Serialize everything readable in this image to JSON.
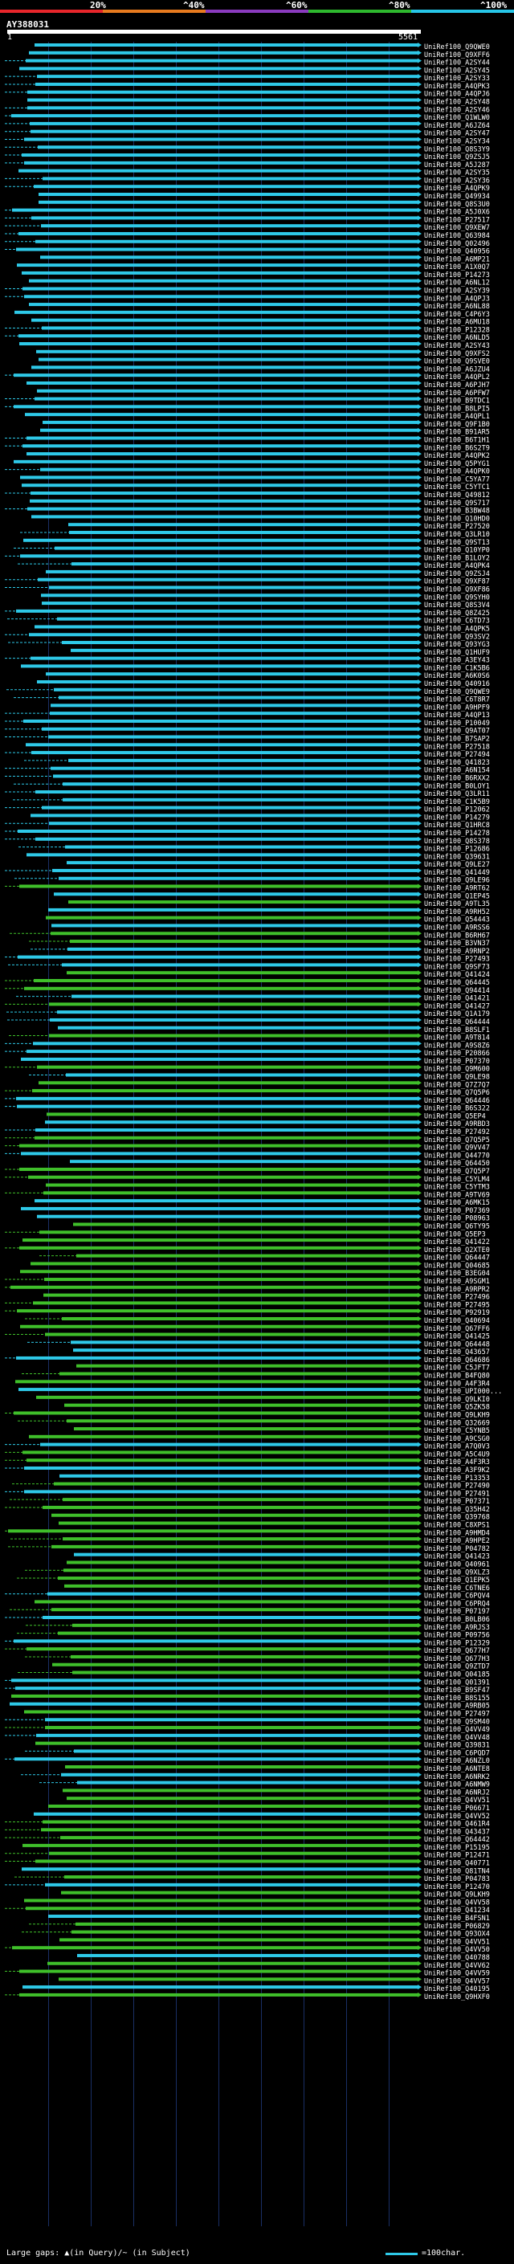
{
  "header": {
    "percent_labels": [
      "20%",
      "^40%",
      "^60%",
      "^80%",
      "^100%"
    ],
    "scale_colors": [
      "#e8262b",
      "#e87b1f",
      "#8b3bbf",
      "#2eb82e",
      "#27c6e8"
    ],
    "query_id": "AY388031",
    "ruler_start": "1",
    "ruler_end": "5561"
  },
  "colors": {
    "high_identity": "#2ec9e8",
    "mid_identity": "#3fbf2a",
    "gap": "#ffffff",
    "label": "#ffffff",
    "grid": "#1a2f66"
  },
  "hits": [
    "UniRef100_Q9QWE0",
    "UniRef100_Q9XFF6",
    "UniRef100_A2SY44",
    "UniRef100_A2SY45",
    "UniRef100_A2SY33",
    "UniRef100_A4QPK3",
    "UniRef100_A4QPJ6",
    "UniRef100_A2SY48",
    "UniRef100_A2SY46",
    "UniRef100_Q1WLW0",
    "UniRef100_A6JZ64",
    "UniRef100_A2SY47",
    "UniRef100_A2SY34",
    "UniRef100_Q8S3Y9",
    "UniRef100_Q9ZSJ5",
    "UniRef100_A5J287",
    "UniRef100_A2SY35",
    "UniRef100_A2SY36",
    "UniRef100_A4QPK9",
    "UniRef100_Q49934",
    "UniRef100_Q8S3U0",
    "UniRef100_A5J0X6",
    "UniRef100_P27517",
    "UniRef100_Q9XEW7",
    "UniRef100_Q63984",
    "UniRef100_Q02496",
    "UniRef100_Q40956",
    "UniRef100_A6MP21",
    "UniRef100_A1X0Q7",
    "UniRef100_P14273",
    "UniRef100_A6NL12",
    "UniRef100_A2SY39",
    "UniRef100_A4QPJ3",
    "UniRef100_A6NL88",
    "UniRef100_C4P6Y3",
    "UniRef100_A6MU18",
    "UniRef100_P12328",
    "UniRef100_A6NLD5",
    "UniRef100_A2SY43",
    "UniRef100_Q9XFS2",
    "UniRef100_Q9SVE0",
    "UniRef100_A6JZU4",
    "UniRef100_A4QPL2",
    "UniRef100_A6PJH7",
    "UniRef100_A6PFW7",
    "UniRef100_B9TDC1",
    "UniRef100_B8LPI5",
    "UniRef100_A4QPL1",
    "UniRef100_Q9F1B0",
    "UniRef100_B91AR5",
    "UniRef100_B6T1H1",
    "UniRef100_B6S2T9",
    "UniRef100_A4QPK2",
    "UniRef100_Q5PYG1",
    "UniRef100_A4QPK0",
    "UniRef100_C5YA77",
    "UniRef100_C5YTC1",
    "UniRef100_Q49812",
    "UniRef100_Q9S717",
    "UniRef100_B3BW48",
    "UniRef100_Q10HD0",
    "UniRef100_P27520",
    "UniRef100_Q3LR10",
    "UniRef100_Q9ST13",
    "UniRef100_Q10YP0",
    "UniRef100_B1LOY2",
    "UniRef100_A4QPK4",
    "UniRef100_Q9ZSJ4",
    "UniRef100_Q9XF87",
    "UniRef100_Q9XF86",
    "UniRef100_Q9SYH0",
    "UniRef100_Q8S3V4",
    "UniRef100_Q8Z425",
    "UniRef100_C6TD73",
    "UniRef100_A4QPK5",
    "UniRef100_Q93SV2",
    "UniRef100_Q93YG3",
    "UniRef100_Q1HUF9",
    "UniRef100_A3EY43",
    "UniRef100_C1K5B6",
    "UniRef100_A6K0S6",
    "UniRef100_Q40916",
    "UniRef100_Q9QWE9",
    "UniRef100_C6T8R7",
    "UniRef100_A9HPF9",
    "UniRef100_A4QP13",
    "UniRef100_P10049",
    "UniRef100_Q9AT07",
    "UniRef100_B7SAP2",
    "UniRef100_P27518",
    "UniRef100_P27494",
    "UniRef100_Q41823",
    "UniRef100_A6N154",
    "UniRef100_B6RXX2",
    "UniRef100_B0LOY1",
    "UniRef100_Q3LR11",
    "UniRef100_C1K5B9",
    "UniRef100_P12062",
    "UniRef100_P14279",
    "UniRef100_Q1HRC8",
    "UniRef100_P14278",
    "UniRef100_Q8S378",
    "UniRef100_P12686",
    "UniRef100_Q39631",
    "UniRef100_Q9LE27",
    "UniRef100_Q41449",
    "UniRef100_Q9LE96",
    "UniRef100_A9RT62",
    "UniRef100_Q1EP45",
    "UniRef100_A9TL35",
    "UniRef100_A9RH52",
    "UniRef100_Q54443",
    "UniRef100_A9RSS6",
    "UniRef100_B6RH67",
    "UniRef100_B3VN37",
    "UniRef100_A9RNP2",
    "UniRef100_P27493",
    "UniRef100_Q9SF73",
    "UniRef100_Q41424",
    "UniRef100_Q64445",
    "UniRef100_Q94414",
    "UniRef100_Q41421",
    "UniRef100_Q41427",
    "UniRef100_Q1A179",
    "UniRef100_Q64444",
    "UniRef100_B8SLF1",
    "UniRef100_A9T814",
    "UniRef100_A9S8Z6",
    "UniRef100_P20866",
    "UniRef100_P07370",
    "UniRef100_Q9M600",
    "UniRef100_Q9LE98",
    "UniRef100_Q7Z7Q7",
    "UniRef100_Q7Q5P6",
    "UniRef100_Q64446",
    "UniRef100_B6S322",
    "UniRef100_Q5EP4",
    "UniRef100_A9RBD3",
    "UniRef100_P27492",
    "UniRef100_Q7Q5P5",
    "UniRef100_Q9VV47",
    "UniRef100_Q44770",
    "UniRef100_Q64450",
    "UniRef100_Q7Q5P7",
    "UniRef100_C5YLM4",
    "UniRef100_C5YTM3",
    "UniRef100_A9TV69",
    "UniRef100_A6MK15",
    "UniRef100_P07369",
    "UniRef100_P08963",
    "UniRef100_Q6TY95",
    "UniRef100_Q5EP3",
    "UniRef100_Q41422",
    "UniRef100_Q2XTE0",
    "UniRef100_Q64447",
    "UniRef100_Q04685",
    "UniRef100_B3EG04",
    "UniRef100_A9SGM1",
    "UniRef100_A9RPR2",
    "UniRef100_P27496",
    "UniRef100_P27495",
    "UniRef100_P92919",
    "UniRef100_Q40694",
    "UniRef100_Q67FF6",
    "UniRef100_Q41425",
    "UniRef100_Q64448",
    "UniRef100_Q43657",
    "UniRef100_Q64686",
    "UniRef100_C5JFT7",
    "UniRef100_B4FQ80",
    "UniRef100_A4F3R4",
    "UniRef100_UPI000...",
    "UniRef100_Q9LKI0",
    "UniRef100_Q5ZK58",
    "UniRef100_Q9LKH9",
    "UniRef100_Q32669",
    "UniRef100_C5YNB5",
    "UniRef100_A9CSG0",
    "UniRef100_A7Q0V3",
    "UniRef100_A5C4U9",
    "UniRef100_A4F3R3",
    "UniRef100_A3F9K2",
    "UniRef100_P13353",
    "UniRef100_P27490",
    "UniRef100_P27491",
    "UniRef100_P07371",
    "UniRef100_Q35H42",
    "UniRef100_Q39768",
    "UniRef100_C8XPS1",
    "UniRef100_A9HMD4",
    "UniRef100_A9HPE2",
    "UniRef100_P04782",
    "UniRef100_Q41423",
    "UniRef100_Q40961",
    "UniRef100_Q9XLZ3",
    "UniRef100_Q1EPK5",
    "UniRef100_C6TNE6",
    "UniRef100_C6PQV4",
    "UniRef100_C6PRQ4",
    "UniRef100_P07197",
    "UniRef100_B0LB06",
    "UniRef100_A9RJS3",
    "UniRef100_P09756",
    "UniRef100_P12329",
    "UniRef100_Q677H7",
    "UniRef100_Q677H3",
    "UniRef100_Q9ZTD7",
    "UniRef100_Q04185",
    "UniRef100_Q01391",
    "UniRef100_B9SF47",
    "UniRef100_B8S155",
    "UniRef100_A9RB05",
    "UniRef100_P27497",
    "UniRef100_Q9SM40",
    "UniRef100_Q4VV49",
    "UniRef100_Q4VV48",
    "UniRef100_Q39831",
    "UniRef100_C6PQD7",
    "UniRef100_A6NZL0",
    "UniRef100_A6NTE8",
    "UniRef100_A6NRK2",
    "UniRef100_A6NMW9",
    "UniRef100_A6NRJ2",
    "UniRef100_Q4VV51",
    "UniRef100_P06671",
    "UniRef100_Q4VV52",
    "UniRef100_Q461R4",
    "UniRef100_Q43437",
    "UniRef100_Q64442",
    "UniRef100_P15195",
    "UniRef100_P12471",
    "UniRef100_Q40771",
    "UniRef100_Q81TN4",
    "UniRef100_P04783",
    "UniRef100_P12470",
    "UniRef100_Q9LKH9",
    "UniRef100_Q4VV58",
    "UniRef100_Q41234",
    "UniRef100_B4FSN1",
    "UniRef100_P06829",
    "UniRef100_Q93OX4",
    "UniRef100_Q4VV51",
    "UniRef100_Q4VV50",
    "UniRef100_Q40788",
    "UniRef100_Q4VV62",
    "UniRef100_Q4VV59",
    "UniRef100_Q4VV57",
    "UniRef100_Q40195",
    "UniRef100_Q9HXF0"
  ],
  "footer": {
    "large_gaps_label": "Large gaps: ▲(in Query)/~ (in Subject)",
    "scale_key": "=100char."
  }
}
